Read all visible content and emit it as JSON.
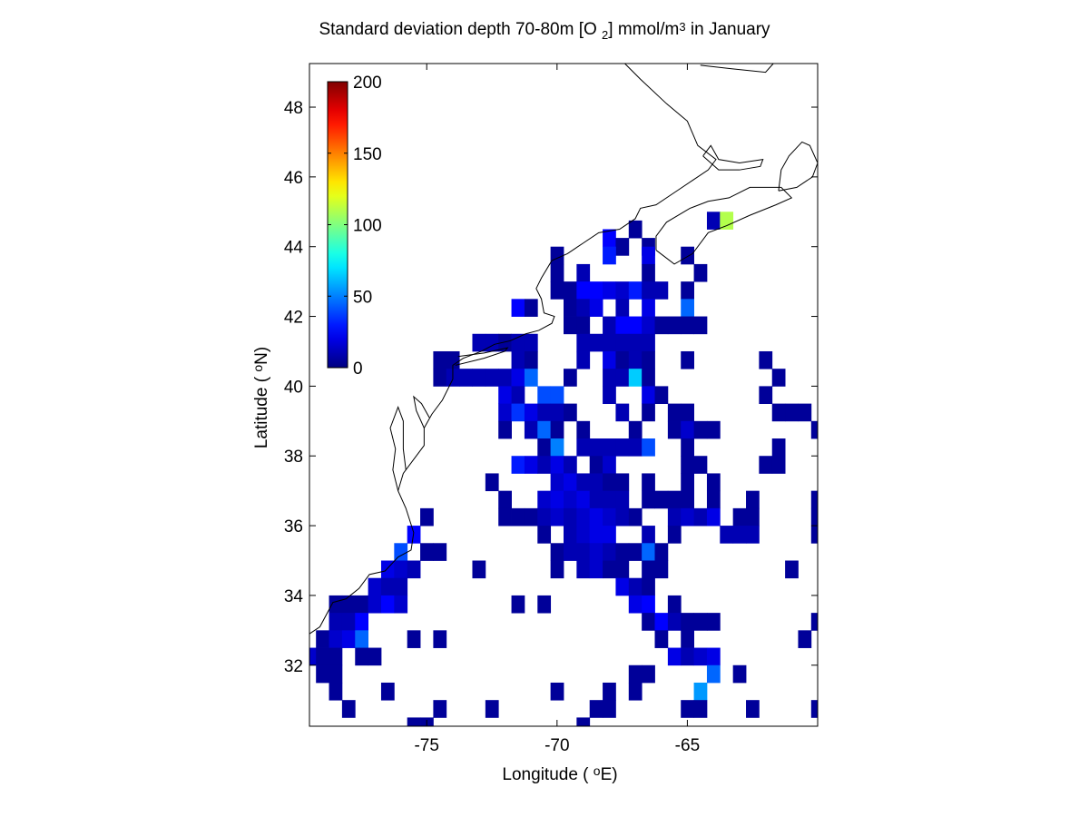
{
  "chart_data": {
    "type": "heatmap",
    "title": {
      "pre": "Standard deviation depth 70-80m [O ",
      "sub": "2",
      "mid": "] mmol/m",
      "sup": "3",
      "post": " in January"
    },
    "xlabel": {
      "pre": "Longitude ( ",
      "sup": "o",
      "post": "E)"
    },
    "ylabel": {
      "pre": "Latitude ( ",
      "sup": "o",
      "post": "N)"
    },
    "xlim": [
      -79.5,
      -60
    ],
    "ylim": [
      30.25,
      49.25
    ],
    "xticks": [
      -75,
      -70,
      -65
    ],
    "xtick_labels": [
      "-75",
      "-70",
      "-65"
    ],
    "yticks": [
      32,
      34,
      36,
      38,
      40,
      42,
      44,
      46,
      48
    ],
    "ytick_labels": [
      "32",
      "34",
      "36",
      "38",
      "40",
      "42",
      "44",
      "46",
      "48"
    ],
    "grid": false,
    "colorbar": {
      "colormap": "jet",
      "range": [
        0,
        200
      ],
      "ticks": [
        0,
        50,
        100,
        150,
        200
      ],
      "tick_labels": [
        "0",
        "50",
        "100",
        "150",
        "200"
      ],
      "placement": "top-left inside axes"
    },
    "cell_size_deg": 0.5,
    "cells": [
      [
        -64.0,
        44.75,
        10
      ],
      [
        -63.5,
        44.75,
        110
      ],
      [
        -67.0,
        44.5,
        5
      ],
      [
        -68.0,
        44.25,
        25
      ],
      [
        -67.5,
        44.0,
        5
      ],
      [
        -66.5,
        44.0,
        5
      ],
      [
        -65.0,
        43.75,
        5
      ],
      [
        -70.0,
        43.75,
        5
      ],
      [
        -68.0,
        43.75,
        30
      ],
      [
        -66.5,
        43.75,
        20
      ],
      [
        -70.0,
        43.25,
        5
      ],
      [
        -66.5,
        43.25,
        5
      ],
      [
        -64.5,
        43.25,
        5
      ],
      [
        -69.0,
        43.25,
        10
      ],
      [
        -70.0,
        42.75,
        5
      ],
      [
        -69.5,
        42.75,
        5
      ],
      [
        -69.0,
        42.75,
        25
      ],
      [
        -68.5,
        42.75,
        25
      ],
      [
        -68.0,
        42.75,
        20
      ],
      [
        -67.5,
        42.75,
        15
      ],
      [
        -67.0,
        42.75,
        30
      ],
      [
        -66.5,
        42.75,
        10
      ],
      [
        -66.0,
        42.75,
        10
      ],
      [
        -65.0,
        42.75,
        5
      ],
      [
        -71.5,
        42.25,
        25
      ],
      [
        -71.0,
        42.25,
        5
      ],
      [
        -69.5,
        42.25,
        5
      ],
      [
        -69.0,
        42.25,
        10
      ],
      [
        -68.5,
        42.25,
        20
      ],
      [
        -67.5,
        42.25,
        10
      ],
      [
        -66.5,
        42.25,
        20
      ],
      [
        -65.0,
        42.25,
        45
      ],
      [
        -69.5,
        41.75,
        5
      ],
      [
        -69.0,
        41.75,
        5
      ],
      [
        -68.0,
        41.75,
        10
      ],
      [
        -67.5,
        41.75,
        25
      ],
      [
        -67.0,
        41.75,
        25
      ],
      [
        -66.5,
        41.75,
        15
      ],
      [
        -66.0,
        41.75,
        5
      ],
      [
        -65.5,
        41.75,
        5
      ],
      [
        -65.0,
        41.75,
        5
      ],
      [
        -64.5,
        41.75,
        5
      ],
      [
        -73.0,
        41.25,
        10
      ],
      [
        -72.5,
        41.25,
        10
      ],
      [
        -72.0,
        41.25,
        5
      ],
      [
        -71.5,
        41.25,
        10
      ],
      [
        -71.0,
        41.25,
        10
      ],
      [
        -69.0,
        41.25,
        10
      ],
      [
        -68.5,
        41.25,
        10
      ],
      [
        -68.0,
        41.25,
        10
      ],
      [
        -67.5,
        41.25,
        10
      ],
      [
        -67.0,
        41.25,
        10
      ],
      [
        -66.5,
        41.25,
        10
      ],
      [
        -74.5,
        40.75,
        5
      ],
      [
        -74.0,
        40.75,
        5
      ],
      [
        -71.5,
        40.75,
        10
      ],
      [
        -71.0,
        40.75,
        5
      ],
      [
        -69.0,
        40.75,
        10
      ],
      [
        -68.0,
        40.75,
        20
      ],
      [
        -67.5,
        40.75,
        5
      ],
      [
        -67.0,
        40.75,
        10
      ],
      [
        -66.5,
        40.75,
        5
      ],
      [
        -65.0,
        40.75,
        5
      ],
      [
        -62.0,
        40.75,
        5
      ],
      [
        -74.5,
        40.25,
        5
      ],
      [
        -74.0,
        40.25,
        10
      ],
      [
        -73.5,
        40.25,
        10
      ],
      [
        -73.0,
        40.25,
        10
      ],
      [
        -72.5,
        40.25,
        10
      ],
      [
        -72.0,
        40.25,
        10
      ],
      [
        -71.5,
        40.25,
        20
      ],
      [
        -71.0,
        40.25,
        45
      ],
      [
        -69.5,
        40.25,
        5
      ],
      [
        -68.0,
        40.25,
        10
      ],
      [
        -67.5,
        40.25,
        10
      ],
      [
        -67.0,
        40.25,
        65
      ],
      [
        -66.5,
        40.25,
        5
      ],
      [
        -61.5,
        40.25,
        5
      ],
      [
        -72.0,
        39.75,
        20
      ],
      [
        -71.5,
        39.75,
        10
      ],
      [
        -70.5,
        39.75,
        40
      ],
      [
        -70.0,
        39.75,
        40
      ],
      [
        -68.0,
        39.75,
        10
      ],
      [
        -66.5,
        39.75,
        20
      ],
      [
        -66.0,
        39.75,
        5
      ],
      [
        -62.0,
        39.75,
        5
      ],
      [
        -72.0,
        39.25,
        15
      ],
      [
        -71.5,
        39.25,
        35
      ],
      [
        -71.0,
        39.25,
        20
      ],
      [
        -70.5,
        39.25,
        10
      ],
      [
        -70.0,
        39.25,
        10
      ],
      [
        -69.5,
        39.25,
        5
      ],
      [
        -67.5,
        39.25,
        10
      ],
      [
        -66.5,
        39.25,
        5
      ],
      [
        -65.5,
        39.25,
        5
      ],
      [
        -65.0,
        39.25,
        5
      ],
      [
        -61.5,
        39.25,
        5
      ],
      [
        -61.0,
        39.25,
        5
      ],
      [
        -60.5,
        39.25,
        5
      ],
      [
        -72.0,
        38.75,
        5
      ],
      [
        -71.0,
        38.75,
        10
      ],
      [
        -70.5,
        38.75,
        45
      ],
      [
        -70.0,
        38.75,
        5
      ],
      [
        -69.0,
        38.75,
        5
      ],
      [
        -67.0,
        38.75,
        5
      ],
      [
        -65.5,
        38.75,
        5
      ],
      [
        -65.0,
        38.75,
        15
      ],
      [
        -64.5,
        38.75,
        5
      ],
      [
        -64.0,
        38.75,
        5
      ],
      [
        -60.0,
        38.75,
        5
      ],
      [
        -70.5,
        38.25,
        5
      ],
      [
        -70.0,
        38.25,
        50
      ],
      [
        -69.0,
        38.25,
        10
      ],
      [
        -68.5,
        38.25,
        10
      ],
      [
        -68.0,
        38.25,
        10
      ],
      [
        -67.5,
        38.25,
        10
      ],
      [
        -67.0,
        38.25,
        10
      ],
      [
        -66.5,
        38.25,
        40
      ],
      [
        -65.0,
        38.25,
        5
      ],
      [
        -61.5,
        38.25,
        5
      ],
      [
        -71.5,
        37.75,
        30
      ],
      [
        -71.0,
        37.75,
        20
      ],
      [
        -70.5,
        37.75,
        10
      ],
      [
        -70.0,
        37.75,
        20
      ],
      [
        -69.5,
        37.75,
        10
      ],
      [
        -68.5,
        37.75,
        5
      ],
      [
        -68.0,
        37.75,
        15
      ],
      [
        -65.0,
        37.75,
        5
      ],
      [
        -64.5,
        37.75,
        5
      ],
      [
        -62.0,
        37.75,
        5
      ],
      [
        -61.5,
        37.75,
        5
      ],
      [
        -72.5,
        37.25,
        5
      ],
      [
        -70.0,
        37.25,
        15
      ],
      [
        -69.5,
        37.25,
        20
      ],
      [
        -69.0,
        37.25,
        10
      ],
      [
        -68.5,
        37.25,
        10
      ],
      [
        -68.0,
        37.25,
        5
      ],
      [
        -67.5,
        37.25,
        5
      ],
      [
        -66.5,
        37.25,
        5
      ],
      [
        -65.0,
        37.25,
        5
      ],
      [
        -64.0,
        37.25,
        5
      ],
      [
        -72.0,
        36.75,
        5
      ],
      [
        -70.5,
        36.75,
        15
      ],
      [
        -70.0,
        36.75,
        20
      ],
      [
        -69.5,
        36.75,
        15
      ],
      [
        -69.0,
        36.75,
        20
      ],
      [
        -68.5,
        36.75,
        10
      ],
      [
        -68.0,
        36.75,
        10
      ],
      [
        -67.5,
        36.75,
        10
      ],
      [
        -66.5,
        36.75,
        5
      ],
      [
        -66.0,
        36.75,
        5
      ],
      [
        -65.5,
        36.75,
        5
      ],
      [
        -65.0,
        36.75,
        5
      ],
      [
        -64.0,
        36.75,
        5
      ],
      [
        -62.5,
        36.75,
        5
      ],
      [
        -60.0,
        36.75,
        5
      ],
      [
        -75.0,
        36.25,
        5
      ],
      [
        -72.0,
        36.25,
        5
      ],
      [
        -71.5,
        36.25,
        5
      ],
      [
        -71.0,
        36.25,
        5
      ],
      [
        -70.5,
        36.25,
        10
      ],
      [
        -70.0,
        36.25,
        15
      ],
      [
        -69.5,
        36.25,
        10
      ],
      [
        -69.0,
        36.25,
        15
      ],
      [
        -68.5,
        36.25,
        20
      ],
      [
        -68.0,
        36.25,
        15
      ],
      [
        -67.5,
        36.25,
        10
      ],
      [
        -67.0,
        36.25,
        5
      ],
      [
        -65.5,
        36.25,
        10
      ],
      [
        -65.0,
        36.25,
        15
      ],
      [
        -64.5,
        36.25,
        10
      ],
      [
        -64.0,
        36.25,
        20
      ],
      [
        -63.0,
        36.25,
        5
      ],
      [
        -62.5,
        36.25,
        5
      ],
      [
        -60.0,
        36.25,
        5
      ],
      [
        -75.5,
        35.75,
        25
      ],
      [
        -70.5,
        35.75,
        5
      ],
      [
        -69.5,
        35.75,
        10
      ],
      [
        -69.0,
        35.75,
        15
      ],
      [
        -68.5,
        35.75,
        20
      ],
      [
        -68.0,
        35.75,
        20
      ],
      [
        -66.5,
        35.75,
        10
      ],
      [
        -65.5,
        35.75,
        5
      ],
      [
        -63.5,
        35.75,
        10
      ],
      [
        -63.0,
        35.75,
        10
      ],
      [
        -62.5,
        35.75,
        10
      ],
      [
        -60.0,
        35.75,
        5
      ],
      [
        -76.0,
        35.25,
        40
      ],
      [
        -75.0,
        35.25,
        5
      ],
      [
        -74.5,
        35.25,
        5
      ],
      [
        -70.0,
        35.25,
        5
      ],
      [
        -69.5,
        35.25,
        10
      ],
      [
        -69.0,
        35.25,
        10
      ],
      [
        -68.5,
        35.25,
        15
      ],
      [
        -68.0,
        35.25,
        10
      ],
      [
        -67.5,
        35.25,
        5
      ],
      [
        -67.0,
        35.25,
        5
      ],
      [
        -66.5,
        35.25,
        45
      ],
      [
        -66.0,
        35.25,
        5
      ],
      [
        -76.5,
        34.75,
        20
      ],
      [
        -76.0,
        34.75,
        15
      ],
      [
        -75.5,
        34.75,
        10
      ],
      [
        -73.0,
        34.75,
        5
      ],
      [
        -70.0,
        34.75,
        5
      ],
      [
        -69.0,
        34.75,
        10
      ],
      [
        -68.5,
        34.75,
        15
      ],
      [
        -68.0,
        34.75,
        5
      ],
      [
        -67.5,
        34.75,
        5
      ],
      [
        -66.5,
        34.75,
        5
      ],
      [
        -66.0,
        34.75,
        5
      ],
      [
        -61.0,
        34.75,
        5
      ],
      [
        -77.0,
        34.25,
        15
      ],
      [
        -76.5,
        34.25,
        10
      ],
      [
        -76.0,
        34.25,
        10
      ],
      [
        -67.5,
        34.25,
        20
      ],
      [
        -67.0,
        34.25,
        10
      ],
      [
        -66.5,
        34.25,
        5
      ],
      [
        -78.5,
        33.75,
        5
      ],
      [
        -78.0,
        33.75,
        5
      ],
      [
        -77.5,
        33.75,
        5
      ],
      [
        -77.0,
        33.75,
        15
      ],
      [
        -76.5,
        33.75,
        25
      ],
      [
        -76.0,
        33.75,
        15
      ],
      [
        -71.5,
        33.75,
        5
      ],
      [
        -70.5,
        33.75,
        5
      ],
      [
        -67.0,
        33.75,
        20
      ],
      [
        -66.5,
        33.75,
        25
      ],
      [
        -65.5,
        33.75,
        5
      ],
      [
        -78.5,
        33.25,
        10
      ],
      [
        -78.0,
        33.25,
        10
      ],
      [
        -77.5,
        33.25,
        25
      ],
      [
        -66.5,
        33.25,
        5
      ],
      [
        -66.0,
        33.25,
        25
      ],
      [
        -65.5,
        33.25,
        10
      ],
      [
        -65.0,
        33.25,
        5
      ],
      [
        -64.5,
        33.25,
        5
      ],
      [
        -64.0,
        33.25,
        5
      ],
      [
        -60.0,
        33.25,
        5
      ],
      [
        -79.0,
        32.75,
        5
      ],
      [
        -78.5,
        32.75,
        15
      ],
      [
        -78.0,
        32.75,
        20
      ],
      [
        -77.5,
        32.75,
        45
      ],
      [
        -75.5,
        32.75,
        5
      ],
      [
        -74.5,
        32.75,
        5
      ],
      [
        -66.0,
        32.75,
        5
      ],
      [
        -65.0,
        32.75,
        5
      ],
      [
        -60.5,
        32.75,
        5
      ],
      [
        -79.5,
        32.25,
        15
      ],
      [
        -79.0,
        32.25,
        5
      ],
      [
        -78.5,
        32.25,
        5
      ],
      [
        -77.5,
        32.25,
        5
      ],
      [
        -77.0,
        32.25,
        5
      ],
      [
        -65.5,
        32.25,
        20
      ],
      [
        -65.0,
        32.25,
        10
      ],
      [
        -64.5,
        32.25,
        15
      ],
      [
        -64.0,
        32.25,
        20
      ],
      [
        -79.0,
        31.75,
        5
      ],
      [
        -78.5,
        31.75,
        5
      ],
      [
        -67.0,
        31.75,
        5
      ],
      [
        -66.5,
        31.75,
        5
      ],
      [
        -64.0,
        31.75,
        45
      ],
      [
        -63.0,
        31.75,
        5
      ],
      [
        -78.5,
        31.25,
        5
      ],
      [
        -76.5,
        31.25,
        5
      ],
      [
        -70.0,
        31.25,
        5
      ],
      [
        -68.0,
        31.25,
        5
      ],
      [
        -67.0,
        31.25,
        5
      ],
      [
        -64.5,
        31.25,
        55
      ],
      [
        -78.0,
        30.75,
        5
      ],
      [
        -74.5,
        30.75,
        5
      ],
      [
        -72.5,
        30.75,
        5
      ],
      [
        -68.5,
        30.75,
        5
      ],
      [
        -68.0,
        30.75,
        5
      ],
      [
        -65.0,
        30.75,
        5
      ],
      [
        -64.5,
        30.75,
        5
      ],
      [
        -62.5,
        30.75,
        5
      ],
      [
        -60.0,
        30.75,
        5
      ],
      [
        -75.5,
        30.25,
        5
      ],
      [
        -75.0,
        30.25,
        5
      ],
      [
        -69.0,
        30.25,
        5
      ]
    ]
  }
}
